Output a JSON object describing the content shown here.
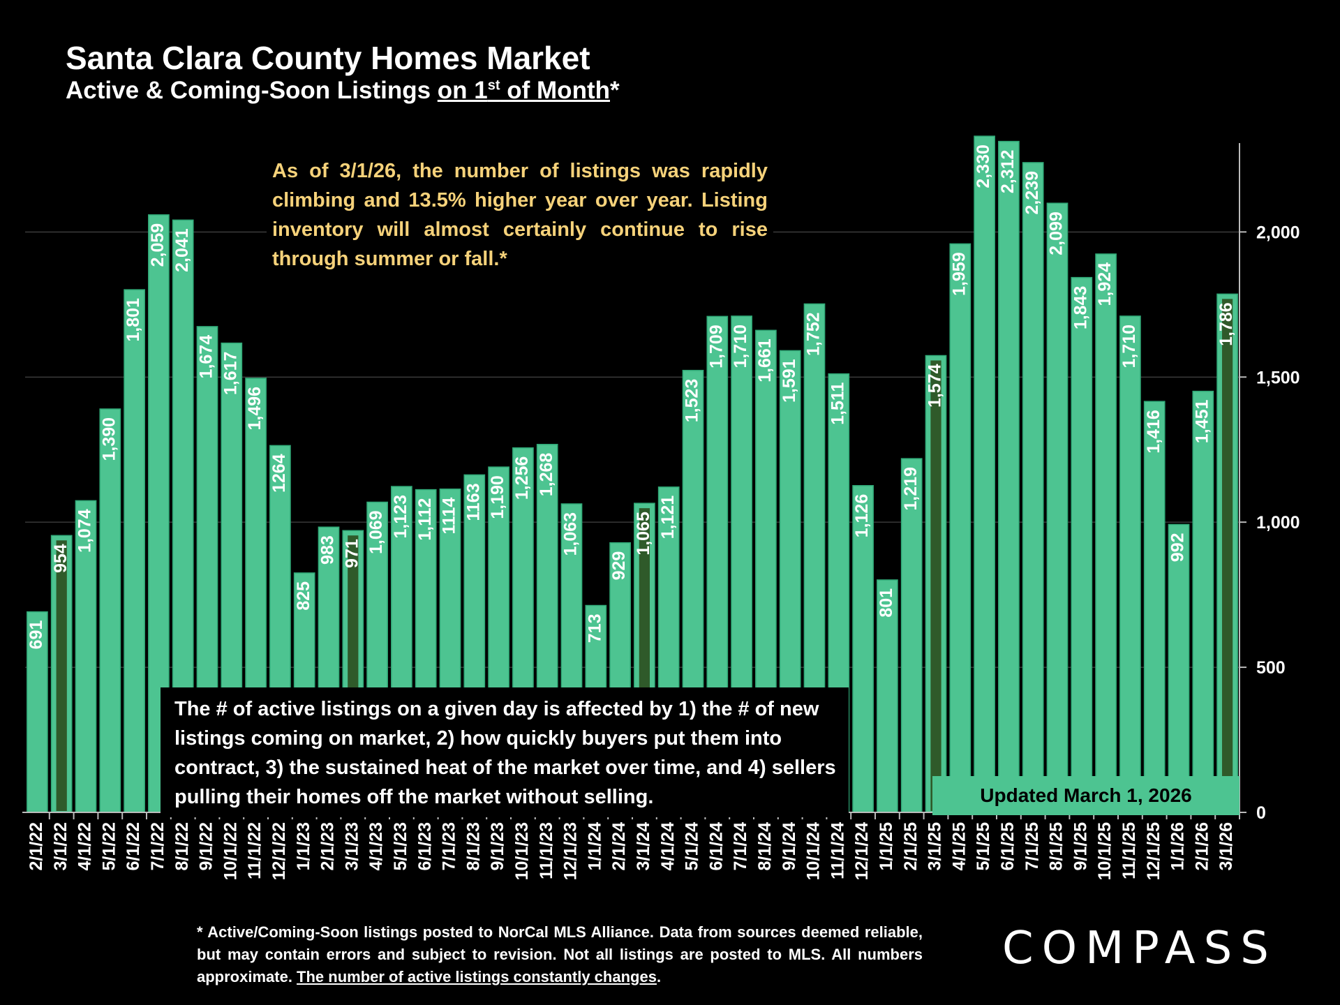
{
  "title": "Santa Clara County Homes Market",
  "subtitle": {
    "prefix": "Active & Coming-Soon Listings ",
    "underlined_a": "on 1",
    "sup": "st",
    "underlined_b": " of Month",
    "suffix": "*"
  },
  "callout_top": "As of 3/1/26, the number of listings was rapidly climbing and 13.5% higher year over year. Listing inventory will almost certainly continue to rise through summer or fall.*",
  "callout_box": "The # of active listings on a given day is affected by 1) the # of new listings coming on market, 2) how quickly buyers put them into contract, 3) the sustained heat of the market over time, and 4) sellers pulling their homes off the market without selling.",
  "updated_label": "Updated March 1, 2026",
  "footnote": {
    "text": "* Active/Coming-Soon listings posted to NorCal MLS Alliance.  Data from sources deemed reliable, but may contain errors and subject to revision.  Not all listings are posted to MLS. All numbers approximate. ",
    "underlined": "The number of active listings constantly changes",
    "end": "."
  },
  "logo": "COMPASS",
  "chart_data": {
    "type": "bar",
    "categories": [
      "2/1/22",
      "3/1/22",
      "4/1/22",
      "5/1/22",
      "6/1/22",
      "7/1/22",
      "8/1/22",
      "9/1/22",
      "10/1/22",
      "11/1/22",
      "12/1/22",
      "1/1/23",
      "2/1/23",
      "3/1/23",
      "4/1/23",
      "5/1/23",
      "6/1/23",
      "7/1/23",
      "8/1/23",
      "9/1/23",
      "10/1/23",
      "11/1/23",
      "12/1/23",
      "1/1/24",
      "2/1/24",
      "3/1/24",
      "4/1/24",
      "5/1/24",
      "6/1/24",
      "7/1/24",
      "8/1/24",
      "9/1/24",
      "10/1/24",
      "11/1/24",
      "12/1/24",
      "1/1/25",
      "2/1/25",
      "3/1/25",
      "4/1/25",
      "5/1/25",
      "6/1/25",
      "7/1/25",
      "8/1/25",
      "9/1/25",
      "10/1/25",
      "11/1/25",
      "12/1/25",
      "1/1/26",
      "2/1/26",
      "3/1/26"
    ],
    "values": [
      691,
      954,
      1074,
      1390,
      1801,
      2059,
      2041,
      1674,
      1617,
      1496,
      1264,
      825,
      983,
      971,
      1069,
      1123,
      1112,
      1114,
      1163,
      1190,
      1256,
      1268,
      1063,
      713,
      929,
      1065,
      1121,
      1523,
      1709,
      1710,
      1661,
      1591,
      1752,
      1511,
      1126,
      801,
      1219,
      1574,
      1959,
      2330,
      2312,
      2239,
      2099,
      1843,
      1924,
      1710,
      1416,
      992,
      1451,
      1786
    ],
    "data_labels": [
      "691",
      "954",
      "1,074",
      "1,390",
      "1,801",
      "2,059",
      "2,041",
      "1,674",
      "1,617",
      "1,496",
      "1264",
      "825",
      "983",
      "971",
      "1,069",
      "1,123",
      "1,112",
      "1114",
      "1163",
      "1,190",
      "1,256",
      "1,268",
      "1,063",
      "713",
      "929",
      "1,065",
      "1,121",
      "1,523",
      "1,709",
      "1,710",
      "1,661",
      "1,591",
      "1,752",
      "1,511",
      "1,126",
      "801",
      "1,219",
      "1,574",
      "1,959",
      "2,330",
      "2,312",
      "2,239",
      "2,099",
      "1,843",
      "1,924",
      "1,710",
      "1,416",
      "992",
      "1,451",
      "1,786"
    ],
    "highlighted_categories": [
      "3/1/22",
      "3/1/23",
      "3/1/24",
      "3/1/25",
      "3/1/26"
    ],
    "ylim": [
      0,
      2400
    ],
    "yticks": [
      0,
      500,
      1000,
      1500,
      2000
    ],
    "ytick_labels": [
      "0",
      "500",
      "1,000",
      "1,500",
      "2,000"
    ],
    "y_axis_side": "right",
    "grid": true,
    "colors": {
      "bar": "#4dc491",
      "bar_edge": "#2fa876",
      "highlight_inner": "#2f5a2a",
      "grid": "#555555",
      "label": "#ffffff"
    }
  }
}
